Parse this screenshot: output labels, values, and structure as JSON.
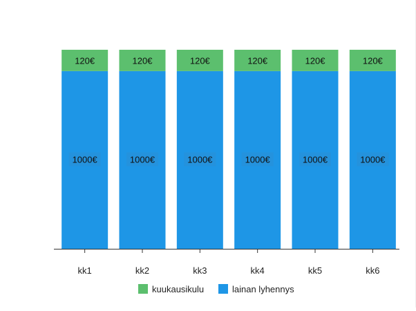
{
  "chart_data": {
    "type": "bar",
    "stacked": true,
    "categories": [
      "kk1",
      "kk2",
      "kk3",
      "kk4",
      "kk5",
      "kk6"
    ],
    "series": [
      {
        "name": "lainan lyhennys",
        "color": "#1e96e6",
        "values": [
          1000,
          1000,
          1000,
          1000,
          1000,
          1000
        ],
        "labels": [
          "1000€",
          "1000€",
          "1000€",
          "1000€",
          "1000€",
          "1000€"
        ]
      },
      {
        "name": "kuukausikulu",
        "color": "#5cbf6e",
        "values": [
          120,
          120,
          120,
          120,
          120,
          120
        ],
        "labels": [
          "120€",
          "120€",
          "120€",
          "120€",
          "120€",
          "120€"
        ]
      }
    ],
    "legend": {
      "position": "bottom",
      "items": [
        {
          "name": "kuukausikulu",
          "color": "#5cbf6e"
        },
        {
          "name": "lainan lyhennys",
          "color": "#1e96e6"
        }
      ]
    },
    "ylim": [
      0,
      1120
    ],
    "grid": false,
    "title": "",
    "xlabel": "",
    "ylabel": ""
  }
}
